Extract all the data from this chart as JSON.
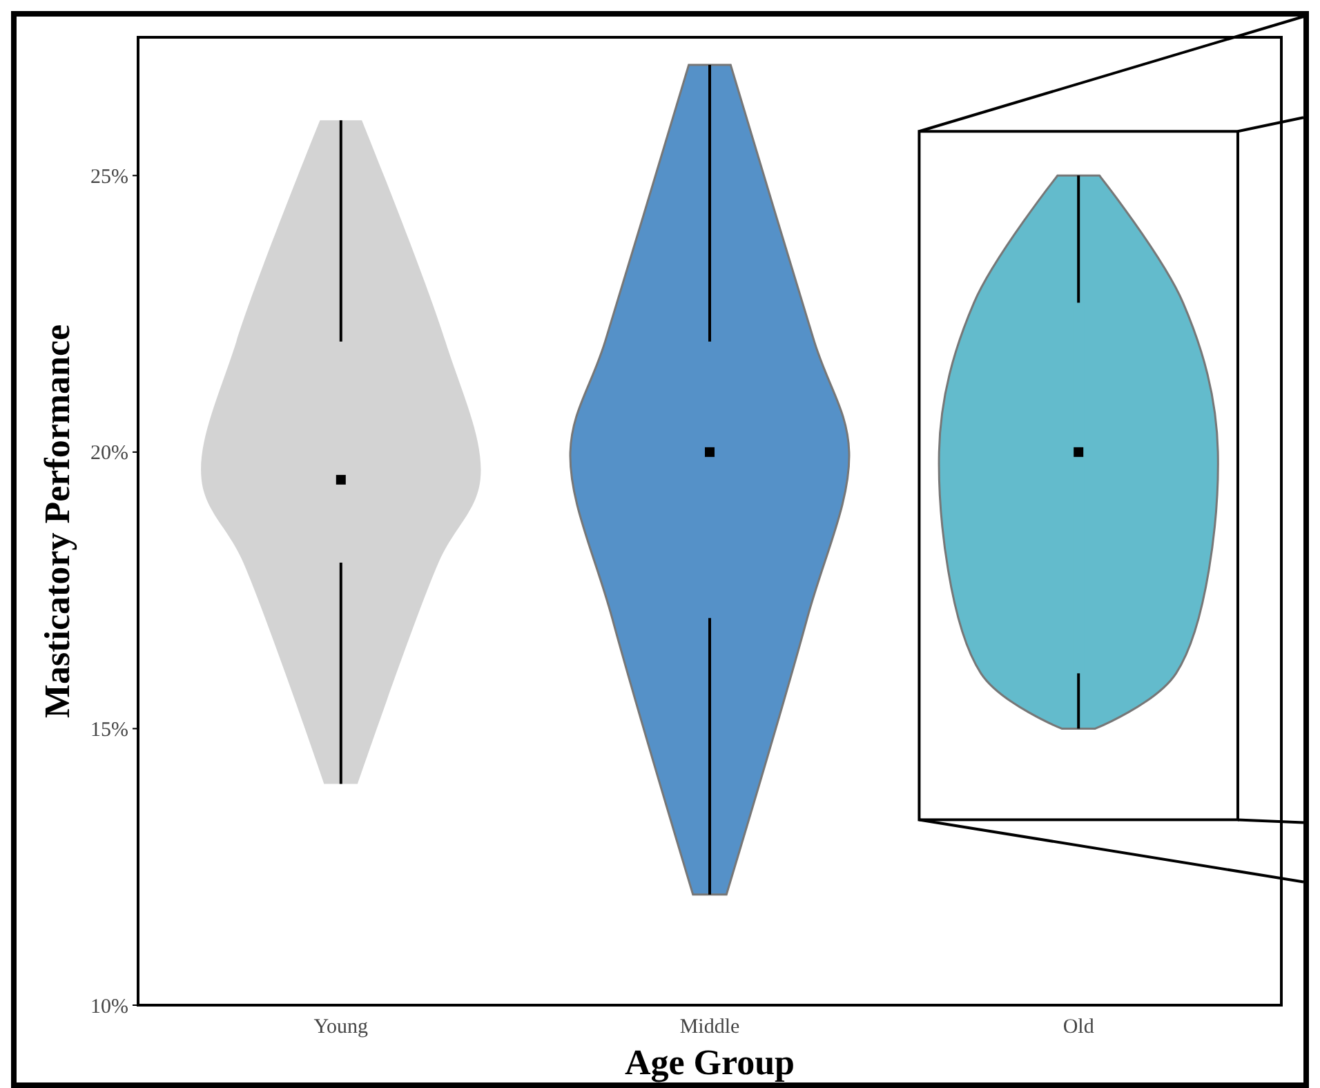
{
  "chart_data": {
    "type": "box",
    "xlabel": "Age Group",
    "ylabel": "Masticatory Performance",
    "categories": [
      "Young",
      "Middle",
      "Old"
    ],
    "colors": [
      "#d3d3d3",
      "#5591c8",
      "#63bbcc"
    ],
    "boxes": [
      {
        "low": 14,
        "q1": 18,
        "median": 19.5,
        "q3": 22,
        "high": 26
      },
      {
        "low": 12,
        "q1": 17,
        "median": 20,
        "q3": 22,
        "high": 27
      },
      {
        "low": 15,
        "q1": 16,
        "median": 20,
        "q3": 22.7,
        "high": 25
      }
    ],
    "ylim": [
      10,
      27.5
    ],
    "yticks": [
      {
        "value": 10,
        "label": "10%"
      },
      {
        "value": 15,
        "label": "15%"
      },
      {
        "value": 20,
        "label": "20%"
      },
      {
        "value": 25,
        "label": "25%"
      }
    ],
    "grid": false
  }
}
